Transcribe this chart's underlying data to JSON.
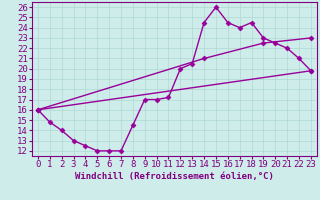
{
  "xlabel": "Windchill (Refroidissement éolien,°C)",
  "bg_color": "#cdecea",
  "line_color": "#990099",
  "xlim": [
    -0.5,
    23.5
  ],
  "ylim": [
    11.5,
    26.5
  ],
  "xticks": [
    0,
    1,
    2,
    3,
    4,
    5,
    6,
    7,
    8,
    9,
    10,
    11,
    12,
    13,
    14,
    15,
    16,
    17,
    18,
    19,
    20,
    21,
    22,
    23
  ],
  "yticks": [
    12,
    13,
    14,
    15,
    16,
    17,
    18,
    19,
    20,
    21,
    22,
    23,
    24,
    25,
    26
  ],
  "line1_x": [
    0,
    1,
    2,
    3,
    4,
    5,
    6,
    7,
    8,
    9,
    10,
    11,
    12,
    13,
    14,
    15,
    16,
    17,
    18,
    19,
    20,
    21,
    22,
    23
  ],
  "line1_y": [
    16,
    14.8,
    14,
    13,
    12.5,
    12,
    12,
    12,
    14.5,
    17,
    17,
    17.2,
    20,
    20.5,
    24.5,
    26,
    24.5,
    24,
    24.5,
    23,
    22.5,
    22,
    21,
    19.8
  ],
  "line2_x": [
    0,
    14,
    19,
    23
  ],
  "line2_y": [
    16,
    21,
    22.5,
    23
  ],
  "line3_x": [
    0,
    23
  ],
  "line3_y": [
    16,
    19.8
  ],
  "markersize": 2.5,
  "linewidth": 1.0,
  "grid_color": "#b0d8d4",
  "font_color": "#800080",
  "font_size": 6.5
}
